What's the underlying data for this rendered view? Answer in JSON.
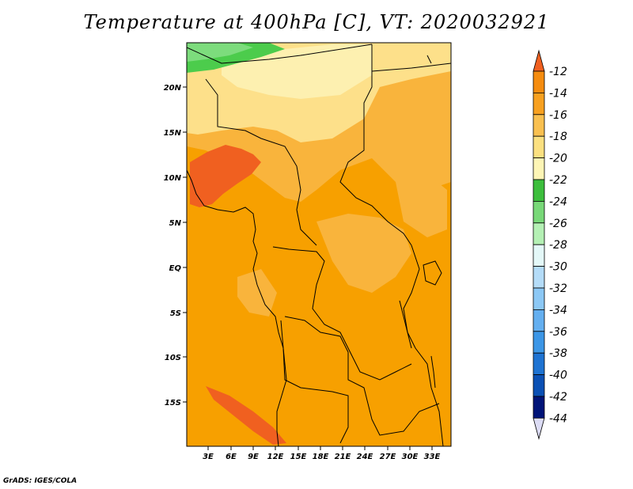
{
  "title": "Temperature at 400hPa [C], VT: 2020032921",
  "credit": "GrADS: IGES/COLA",
  "x_ticks": [
    "3E",
    "6E",
    "9E",
    "12E",
    "15E",
    "18E",
    "21E",
    "24E",
    "27E",
    "30E",
    "33E"
  ],
  "y_ticks": [
    "20N",
    "15N",
    "10N",
    "5N",
    "EQ",
    "5S",
    "10S",
    "15S"
  ],
  "colorbar": {
    "labels": [
      "-12",
      "-14",
      "-16",
      "-18",
      "-20",
      "-22",
      "-24",
      "-26",
      "-28",
      "-30",
      "-32",
      "-34",
      "-36",
      "-38",
      "-40",
      "-42",
      "-44"
    ],
    "colors": [
      "#f06020",
      "#f58c0f",
      "#f7a020",
      "#f9c050",
      "#fbe080",
      "#fdf5b5",
      "#3cbe3c",
      "#78d878",
      "#b4f0b4",
      "#e4f8f8",
      "#b4dcf8",
      "#8cc8f5",
      "#64aff0",
      "#3c96e6",
      "#1e73d2",
      "#0a50b4",
      "#001478",
      "#dcdcf5"
    ]
  },
  "colors": {
    "background_field": "#f7a000",
    "warm_spot": "#f06020",
    "light_orange": "#f9b43c",
    "pale_yellow": "#fde08a",
    "green": "#4ccc4c"
  }
}
